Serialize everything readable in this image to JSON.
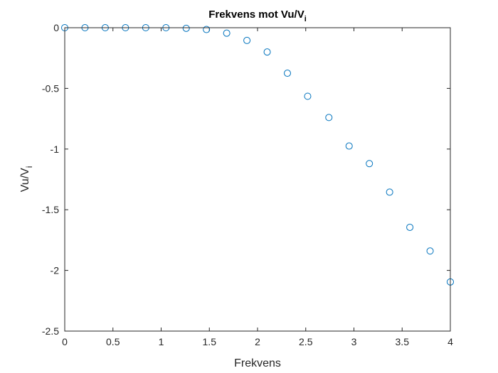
{
  "chart_data": {
    "type": "scatter",
    "title": "Frekvens mot Vu/V",
    "title_subscript": "i",
    "xlabel": "Frekvens",
    "ylabel": "Vu/V",
    "ylabel_subscript": "i",
    "xlim": [
      0,
      4
    ],
    "ylim": [
      -2.5,
      0
    ],
    "xticks": [
      "0",
      "0.5",
      "1",
      "1.5",
      "2",
      "2.5",
      "3",
      "3.5",
      "4"
    ],
    "yticks": [
      "0",
      "-0.5",
      "-1",
      "-1.5",
      "-2",
      "-2.5"
    ],
    "grid": false,
    "marker": "circle-open",
    "color": "#0072BD",
    "series": [
      {
        "x": [
          0,
          0.21,
          0.42,
          0.63,
          0.84,
          1.05,
          1.26,
          1.47,
          1.68,
          1.89,
          2.1,
          2.31,
          2.52,
          2.74,
          2.95,
          3.16,
          3.37,
          3.58,
          3.79,
          4.0
        ],
        "y": [
          0,
          0,
          0,
          0,
          0,
          0,
          -0.005,
          -0.015,
          -0.045,
          -0.105,
          -0.2,
          -0.375,
          -0.565,
          -0.74,
          -0.975,
          -1.12,
          -1.355,
          -1.645,
          -1.84,
          -2.095
        ]
      }
    ]
  }
}
